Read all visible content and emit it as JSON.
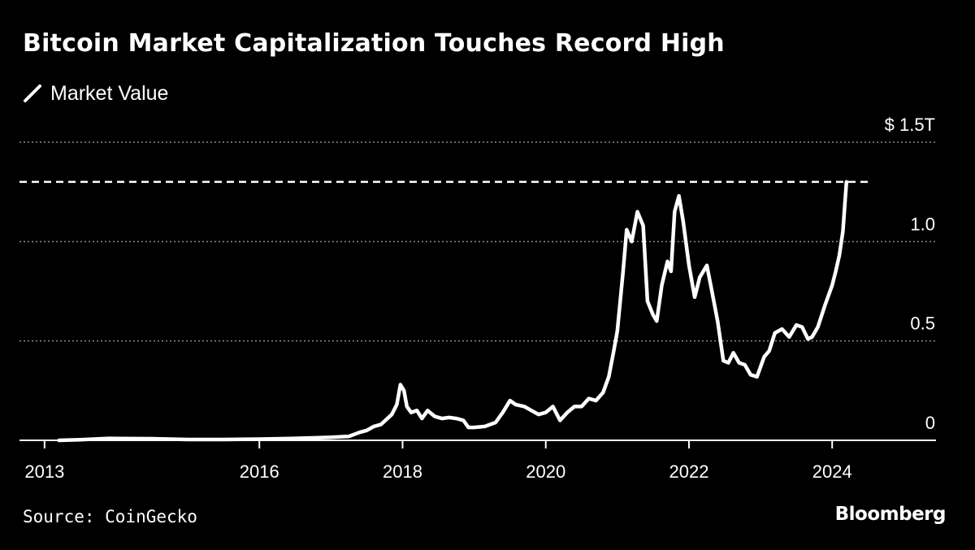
{
  "chart_data": {
    "type": "line",
    "title": "Bitcoin Market Capitalization Touches Record High",
    "legend_position": "top-left",
    "series": [
      {
        "name": "Market Value",
        "color": "#ffffff",
        "points": [
          [
            2013.2,
            0.0
          ],
          [
            2013.5,
            0.003
          ],
          [
            2013.9,
            0.01
          ],
          [
            2014.0,
            0.009
          ],
          [
            2014.5,
            0.008
          ],
          [
            2015.0,
            0.004
          ],
          [
            2015.5,
            0.004
          ],
          [
            2016.0,
            0.006
          ],
          [
            2016.5,
            0.01
          ],
          [
            2017.0,
            0.015
          ],
          [
            2017.25,
            0.02
          ],
          [
            2017.4,
            0.04
          ],
          [
            2017.5,
            0.05
          ],
          [
            2017.6,
            0.07
          ],
          [
            2017.7,
            0.08
          ],
          [
            2017.85,
            0.13
          ],
          [
            2017.92,
            0.18
          ],
          [
            2017.97,
            0.28
          ],
          [
            2018.02,
            0.25
          ],
          [
            2018.06,
            0.17
          ],
          [
            2018.12,
            0.14
          ],
          [
            2018.2,
            0.15
          ],
          [
            2018.27,
            0.11
          ],
          [
            2018.35,
            0.15
          ],
          [
            2018.45,
            0.12
          ],
          [
            2018.55,
            0.11
          ],
          [
            2018.65,
            0.115
          ],
          [
            2018.75,
            0.11
          ],
          [
            2018.85,
            0.1
          ],
          [
            2018.92,
            0.065
          ],
          [
            2019.0,
            0.065
          ],
          [
            2019.15,
            0.07
          ],
          [
            2019.3,
            0.09
          ],
          [
            2019.4,
            0.14
          ],
          [
            2019.5,
            0.2
          ],
          [
            2019.58,
            0.18
          ],
          [
            2019.7,
            0.17
          ],
          [
            2019.8,
            0.15
          ],
          [
            2019.9,
            0.13
          ],
          [
            2020.0,
            0.14
          ],
          [
            2020.1,
            0.17
          ],
          [
            2020.2,
            0.1
          ],
          [
            2020.3,
            0.14
          ],
          [
            2020.4,
            0.17
          ],
          [
            2020.5,
            0.17
          ],
          [
            2020.6,
            0.21
          ],
          [
            2020.7,
            0.2
          ],
          [
            2020.8,
            0.24
          ],
          [
            2020.88,
            0.32
          ],
          [
            2020.95,
            0.45
          ],
          [
            2021.0,
            0.55
          ],
          [
            2021.08,
            0.85
          ],
          [
            2021.13,
            1.06
          ],
          [
            2021.2,
            1.0
          ],
          [
            2021.28,
            1.15
          ],
          [
            2021.36,
            1.08
          ],
          [
            2021.42,
            0.7
          ],
          [
            2021.5,
            0.63
          ],
          [
            2021.55,
            0.6
          ],
          [
            2021.62,
            0.78
          ],
          [
            2021.7,
            0.9
          ],
          [
            2021.75,
            0.85
          ],
          [
            2021.8,
            1.15
          ],
          [
            2021.86,
            1.23
          ],
          [
            2021.92,
            1.1
          ],
          [
            2022.0,
            0.88
          ],
          [
            2022.08,
            0.72
          ],
          [
            2022.15,
            0.82
          ],
          [
            2022.25,
            0.88
          ],
          [
            2022.32,
            0.75
          ],
          [
            2022.4,
            0.6
          ],
          [
            2022.48,
            0.4
          ],
          [
            2022.55,
            0.39
          ],
          [
            2022.62,
            0.44
          ],
          [
            2022.7,
            0.39
          ],
          [
            2022.78,
            0.38
          ],
          [
            2022.86,
            0.33
          ],
          [
            2022.95,
            0.32
          ],
          [
            2023.05,
            0.42
          ],
          [
            2023.12,
            0.45
          ],
          [
            2023.2,
            0.54
          ],
          [
            2023.3,
            0.56
          ],
          [
            2023.4,
            0.52
          ],
          [
            2023.5,
            0.58
          ],
          [
            2023.58,
            0.57
          ],
          [
            2023.66,
            0.51
          ],
          [
            2023.72,
            0.52
          ],
          [
            2023.8,
            0.57
          ],
          [
            2023.9,
            0.68
          ],
          [
            2024.0,
            0.78
          ],
          [
            2024.05,
            0.85
          ],
          [
            2024.1,
            0.93
          ],
          [
            2024.15,
            1.05
          ],
          [
            2024.2,
            1.3
          ]
        ]
      }
    ],
    "x_ticks": [
      {
        "value": 2013,
        "label": "2013"
      },
      {
        "value": 2016,
        "label": "2016"
      },
      {
        "value": 2018,
        "label": "2018"
      },
      {
        "value": 2020,
        "label": "2020"
      },
      {
        "value": 2022,
        "label": "2022"
      },
      {
        "value": 2024,
        "label": "2024"
      }
    ],
    "y_ticks": [
      {
        "value": 0,
        "label": "0"
      },
      {
        "value": 0.5,
        "label": "0.5"
      },
      {
        "value": 1.0,
        "label": "1.0"
      },
      {
        "value": 1.5,
        "label": "$ 1.5T"
      }
    ],
    "xlim": [
      2012.65,
      2025.45
    ],
    "ylim": [
      0,
      1.5
    ],
    "reference_line": {
      "value": 1.3,
      "style": "dashed"
    },
    "grid": {
      "horizontal": true,
      "style": "dotted"
    }
  },
  "source": "Source: CoinGecko",
  "brand": "Bloomberg",
  "colors": {
    "background": "#000000",
    "foreground": "#ffffff",
    "grid": "#8a8a8a"
  }
}
